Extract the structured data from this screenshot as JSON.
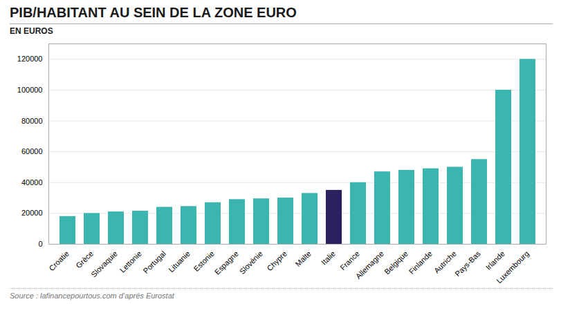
{
  "chart_data": {
    "type": "bar",
    "title": "PIB/HABITANT AU SEIN DE LA ZONE EURO",
    "subtitle": "EN EUROS",
    "source": "Source : lafinancepourtous.com d’aprés Eurostat",
    "categories": [
      "Croatie",
      "Grèce",
      "Slovaquie",
      "Lettonie",
      "Portugal",
      "Lituanie",
      "Estonie",
      "Espagne",
      "Slovénie",
      "Chypre",
      "Malte",
      "Italie",
      "France",
      "Allemagne",
      "Belgique",
      "Finlande",
      "Autriche",
      "Pays-Bas",
      "Irlande",
      "Luxembourg"
    ],
    "values": [
      18000,
      20000,
      21000,
      21500,
      24000,
      24500,
      27000,
      29000,
      29500,
      30000,
      33000,
      35000,
      40000,
      47000,
      48000,
      49000,
      50000,
      55000,
      100000,
      120000
    ],
    "colors": [
      "#3ab5b0",
      "#3ab5b0",
      "#3ab5b0",
      "#3ab5b0",
      "#3ab5b0",
      "#3ab5b0",
      "#3ab5b0",
      "#3ab5b0",
      "#3ab5b0",
      "#3ab5b0",
      "#3ab5b0",
      "#2d2060",
      "#3ab5b0",
      "#3ab5b0",
      "#3ab5b0",
      "#3ab5b0",
      "#3ab5b0",
      "#3ab5b0",
      "#3ab5b0",
      "#3ab5b0"
    ],
    "ylim": [
      0,
      130000
    ],
    "yticks": [
      0,
      20000,
      40000,
      60000,
      80000,
      100000,
      120000
    ],
    "grid": true
  }
}
